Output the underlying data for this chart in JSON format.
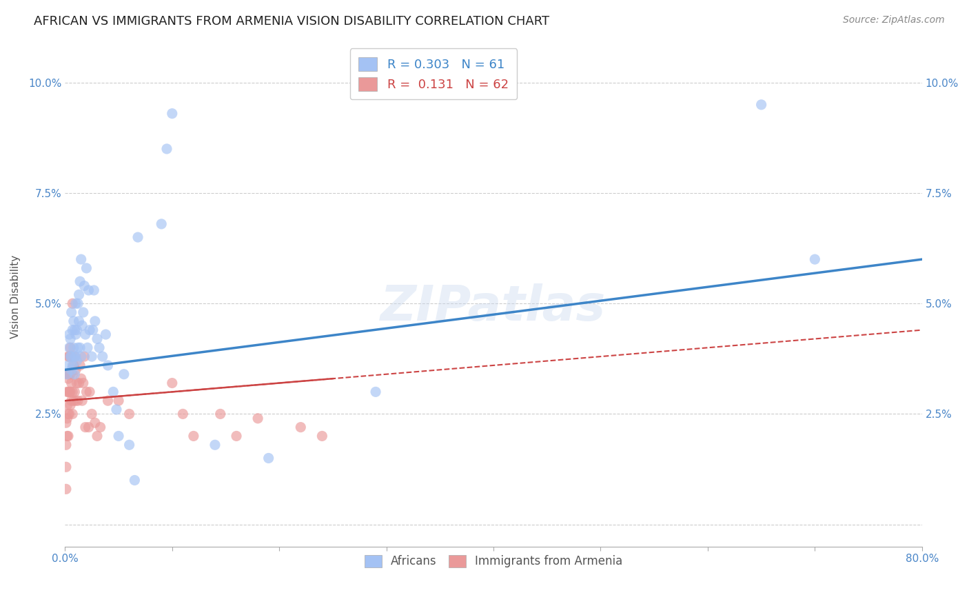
{
  "title": "AFRICAN VS IMMIGRANTS FROM ARMENIA VISION DISABILITY CORRELATION CHART",
  "source": "Source: ZipAtlas.com",
  "ylabel": "Vision Disability",
  "yticks": [
    0.0,
    0.025,
    0.05,
    0.075,
    0.1
  ],
  "ytick_labels_left": [
    "",
    "2.5%",
    "5.0%",
    "7.5%",
    "10.0%"
  ],
  "ytick_labels_right": [
    "",
    "2.5%",
    "5.0%",
    "7.5%",
    "10.0%"
  ],
  "xlim": [
    0.0,
    0.8
  ],
  "ylim": [
    -0.005,
    0.108
  ],
  "watermark": "ZIPatlas",
  "scatter_blue": {
    "color": "#a4c2f4",
    "alpha": 0.65,
    "size": 120,
    "x": [
      0.002,
      0.003,
      0.004,
      0.004,
      0.005,
      0.005,
      0.006,
      0.006,
      0.006,
      0.007,
      0.007,
      0.008,
      0.008,
      0.009,
      0.009,
      0.009,
      0.01,
      0.01,
      0.01,
      0.011,
      0.011,
      0.012,
      0.012,
      0.013,
      0.013,
      0.014,
      0.014,
      0.015,
      0.015,
      0.016,
      0.017,
      0.018,
      0.019,
      0.02,
      0.021,
      0.022,
      0.023,
      0.025,
      0.026,
      0.027,
      0.028,
      0.03,
      0.032,
      0.035,
      0.038,
      0.04,
      0.045,
      0.048,
      0.05,
      0.055,
      0.06,
      0.065,
      0.068,
      0.09,
      0.095,
      0.1,
      0.14,
      0.19,
      0.29,
      0.65,
      0.7
    ],
    "y": [
      0.034,
      0.036,
      0.04,
      0.043,
      0.038,
      0.042,
      0.035,
      0.038,
      0.048,
      0.036,
      0.044,
      0.04,
      0.046,
      0.034,
      0.038,
      0.044,
      0.038,
      0.043,
      0.05,
      0.037,
      0.044,
      0.04,
      0.05,
      0.046,
      0.052,
      0.055,
      0.04,
      0.06,
      0.038,
      0.045,
      0.048,
      0.054,
      0.043,
      0.058,
      0.04,
      0.053,
      0.044,
      0.038,
      0.044,
      0.053,
      0.046,
      0.042,
      0.04,
      0.038,
      0.043,
      0.036,
      0.03,
      0.026,
      0.02,
      0.034,
      0.018,
      0.01,
      0.065,
      0.068,
      0.085,
      0.093,
      0.018,
      0.015,
      0.03,
      0.095,
      0.06
    ]
  },
  "scatter_pink": {
    "color": "#ea9999",
    "alpha": 0.65,
    "size": 120,
    "x": [
      0.001,
      0.001,
      0.001,
      0.001,
      0.002,
      0.002,
      0.002,
      0.002,
      0.002,
      0.003,
      0.003,
      0.003,
      0.003,
      0.003,
      0.004,
      0.004,
      0.004,
      0.004,
      0.005,
      0.005,
      0.005,
      0.005,
      0.006,
      0.006,
      0.006,
      0.007,
      0.007,
      0.007,
      0.007,
      0.008,
      0.008,
      0.009,
      0.009,
      0.01,
      0.01,
      0.011,
      0.012,
      0.013,
      0.014,
      0.015,
      0.016,
      0.017,
      0.018,
      0.019,
      0.02,
      0.022,
      0.023,
      0.025,
      0.028,
      0.03,
      0.033,
      0.04,
      0.05,
      0.06,
      0.1,
      0.11,
      0.12,
      0.145,
      0.16,
      0.18,
      0.22,
      0.24
    ],
    "y": [
      0.008,
      0.013,
      0.018,
      0.023,
      0.02,
      0.024,
      0.027,
      0.03,
      0.034,
      0.02,
      0.025,
      0.03,
      0.033,
      0.038,
      0.025,
      0.03,
      0.034,
      0.038,
      0.027,
      0.03,
      0.034,
      0.04,
      0.028,
      0.032,
      0.038,
      0.025,
      0.03,
      0.034,
      0.05,
      0.028,
      0.036,
      0.03,
      0.038,
      0.028,
      0.035,
      0.032,
      0.028,
      0.032,
      0.036,
      0.033,
      0.028,
      0.032,
      0.038,
      0.022,
      0.03,
      0.022,
      0.03,
      0.025,
      0.023,
      0.02,
      0.022,
      0.028,
      0.028,
      0.025,
      0.032,
      0.025,
      0.02,
      0.025,
      0.02,
      0.024,
      0.022,
      0.02
    ]
  },
  "trendline_blue": {
    "color": "#3d85c8",
    "linewidth": 2.5,
    "x_start": 0.0,
    "x_end": 0.8,
    "y_start": 0.035,
    "y_end": 0.06
  },
  "trendline_pink_solid": {
    "color": "#cc4444",
    "linewidth": 1.8,
    "linestyle": "-",
    "x_start": 0.0,
    "x_end": 0.25,
    "y_start": 0.028,
    "y_end": 0.033
  },
  "trendline_pink_dashed": {
    "color": "#cc4444",
    "linewidth": 1.5,
    "linestyle": "--",
    "x_start": 0.0,
    "x_end": 0.8,
    "y_start": 0.028,
    "y_end": 0.044
  },
  "grid_color": "#cccccc",
  "grid_linestyle": "--",
  "bg_color": "#ffffff",
  "title_fontsize": 13,
  "axis_label_fontsize": 11,
  "tick_fontsize": 11,
  "tick_color": "#4a86c8",
  "source_fontsize": 10,
  "source_color": "#888888"
}
